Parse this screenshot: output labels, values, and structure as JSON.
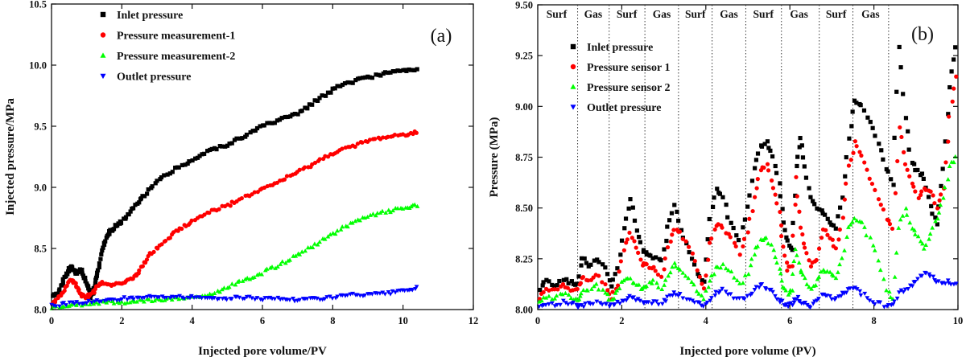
{
  "chart_data": [
    {
      "type": "scatter",
      "panel": "(a)",
      "xlabel": "Injected pore volume/PV",
      "ylabel": "Injected pressure/MPa",
      "xlim": [
        0,
        12
      ],
      "ylim": [
        8.0,
        10.5
      ],
      "xticks": [
        0,
        2,
        4,
        6,
        8,
        10,
        12
      ],
      "yticks": [
        8.0,
        8.5,
        9.0,
        9.5,
        10.0,
        10.5
      ],
      "ytick_labels": [
        "8.0",
        "8.5",
        "9.0",
        "9.5",
        "10.0",
        "10.5"
      ],
      "legend_position": "top-left",
      "series": [
        {
          "name": "Inlet pressure",
          "color": "#000000",
          "marker": "square",
          "x": [
            0.0,
            0.2,
            0.4,
            0.55,
            0.7,
            0.85,
            1.0,
            1.1,
            1.2,
            1.3,
            1.45,
            1.6,
            1.8,
            2.0,
            2.3,
            2.6,
            3.0,
            3.5,
            4.0,
            4.5,
            5.0,
            5.5,
            6.0,
            6.5,
            7.0,
            7.5,
            8.0,
            8.5,
            9.0,
            9.5,
            10.0,
            10.4
          ],
          "y": [
            8.1,
            8.15,
            8.28,
            8.35,
            8.3,
            8.32,
            8.22,
            8.1,
            8.15,
            8.3,
            8.5,
            8.62,
            8.68,
            8.72,
            8.82,
            8.92,
            9.05,
            9.15,
            9.22,
            9.3,
            9.35,
            9.42,
            9.5,
            9.55,
            9.6,
            9.7,
            9.8,
            9.86,
            9.9,
            9.93,
            9.96,
            9.97
          ]
        },
        {
          "name": "Pressure measurement-1",
          "color": "#ff0000",
          "marker": "circle",
          "x": [
            0.0,
            0.3,
            0.55,
            0.7,
            0.85,
            1.0,
            1.2,
            1.4,
            1.7,
            2.0,
            2.3,
            2.5,
            2.8,
            3.2,
            3.6,
            4.0,
            4.5,
            5.0,
            5.5,
            6.0,
            6.5,
            7.0,
            7.5,
            8.0,
            8.5,
            9.0,
            9.5,
            10.0,
            10.4
          ],
          "y": [
            8.05,
            8.12,
            8.25,
            8.2,
            8.12,
            8.1,
            8.15,
            8.22,
            8.2,
            8.22,
            8.25,
            8.32,
            8.45,
            8.55,
            8.65,
            8.72,
            8.8,
            8.85,
            8.92,
            8.98,
            9.05,
            9.12,
            9.2,
            9.28,
            9.33,
            9.38,
            9.41,
            9.43,
            9.45
          ]
        },
        {
          "name": "Pressure measurement-2",
          "color": "#00ff00",
          "marker": "triangle-up",
          "x": [
            0.0,
            0.5,
            1.0,
            1.5,
            2.0,
            2.5,
            3.0,
            3.5,
            4.0,
            4.5,
            5.0,
            5.5,
            6.0,
            6.5,
            7.0,
            7.5,
            8.0,
            8.5,
            9.0,
            9.5,
            10.0,
            10.4
          ],
          "y": [
            8.02,
            8.03,
            8.05,
            8.06,
            8.06,
            8.07,
            8.08,
            8.09,
            8.1,
            8.12,
            8.18,
            8.24,
            8.3,
            8.37,
            8.45,
            8.53,
            8.62,
            8.7,
            8.76,
            8.8,
            8.83,
            8.85
          ]
        },
        {
          "name": "Outlet pressure",
          "color": "#0000ff",
          "marker": "triangle-down",
          "x": [
            0.0,
            0.5,
            1.0,
            1.5,
            2.0,
            2.5,
            3.0,
            3.5,
            4.0,
            4.5,
            5.0,
            5.5,
            6.0,
            6.5,
            7.0,
            7.5,
            8.0,
            8.5,
            9.0,
            9.5,
            10.0,
            10.4
          ],
          "y": [
            8.03,
            8.05,
            8.06,
            8.08,
            8.09,
            8.1,
            8.1,
            8.1,
            8.1,
            8.1,
            8.09,
            8.1,
            8.09,
            8.09,
            8.08,
            8.09,
            8.1,
            8.12,
            8.12,
            8.13,
            8.15,
            8.18
          ]
        }
      ]
    },
    {
      "type": "scatter",
      "panel": "(b)",
      "xlabel": "Injected pore volume (PV)",
      "ylabel": "Pressure (MPa)",
      "xlim": [
        0,
        10
      ],
      "ylim": [
        8.0,
        9.5
      ],
      "xticks": [
        0,
        2,
        4,
        6,
        8,
        10
      ],
      "yticks": [
        8.0,
        8.25,
        8.5,
        8.75,
        9.0,
        9.25,
        9.5
      ],
      "ytick_labels": [
        "8.00",
        "8.25",
        "8.50",
        "8.75",
        "9.00",
        "9.25",
        "9.50"
      ],
      "legend_position": "top-left",
      "region_boundaries": [
        0.95,
        1.7,
        2.55,
        3.35,
        4.15,
        4.95,
        5.8,
        6.7,
        7.5,
        8.35
      ],
      "region_labels": [
        {
          "text": "Surf",
          "x": 0.45
        },
        {
          "text": "Gas",
          "x": 1.32
        },
        {
          "text": "Surf",
          "x": 2.12
        },
        {
          "text": "Gas",
          "x": 2.95
        },
        {
          "text": "Surf",
          "x": 3.75
        },
        {
          "text": "Gas",
          "x": 4.55
        },
        {
          "text": "Surf",
          "x": 5.37
        },
        {
          "text": "Gas",
          "x": 6.22
        },
        {
          "text": "Surf",
          "x": 7.1
        },
        {
          "text": "Gas",
          "x": 7.92
        }
      ],
      "series": [
        {
          "name": "Inlet pressure",
          "color": "#000000",
          "marker": "square",
          "x": [
            0.05,
            0.2,
            0.4,
            0.6,
            0.8,
            0.95,
            1.05,
            1.2,
            1.4,
            1.6,
            1.75,
            1.9,
            2.05,
            2.2,
            2.35,
            2.5,
            2.6,
            2.75,
            2.95,
            3.1,
            3.25,
            3.4,
            3.6,
            3.8,
            3.95,
            4.1,
            4.25,
            4.4,
            4.6,
            4.8,
            5.0,
            5.15,
            5.3,
            5.45,
            5.6,
            5.75,
            5.85,
            5.95,
            6.05,
            6.15,
            6.25,
            6.35,
            6.5,
            6.65,
            6.8,
            6.95,
            7.1,
            7.25,
            7.4,
            7.55,
            7.7,
            7.9,
            8.1,
            8.3,
            8.45,
            8.6,
            8.75,
            8.9,
            9.05,
            9.2,
            9.35,
            9.5,
            9.65,
            9.8,
            9.95
          ],
          "y": [
            8.1,
            8.14,
            8.12,
            8.15,
            8.13,
            8.12,
            8.26,
            8.22,
            8.25,
            8.2,
            8.12,
            8.2,
            8.4,
            8.55,
            8.38,
            8.3,
            8.28,
            8.26,
            8.24,
            8.4,
            8.52,
            8.4,
            8.28,
            8.18,
            8.14,
            8.45,
            8.6,
            8.55,
            8.42,
            8.35,
            8.5,
            8.7,
            8.8,
            8.82,
            8.75,
            8.62,
            8.42,
            8.33,
            8.3,
            8.7,
            8.85,
            8.7,
            8.55,
            8.5,
            8.48,
            8.43,
            8.4,
            8.55,
            8.85,
            9.03,
            9.0,
            8.92,
            8.82,
            8.7,
            8.62,
            9.3,
            8.95,
            8.72,
            8.68,
            8.65,
            8.5,
            8.42,
            8.7,
            9.1,
            9.3
          ]
        },
        {
          "name": "Pressure sensor 1",
          "color": "#ff0000",
          "marker": "circle",
          "x": [
            0.05,
            0.2,
            0.4,
            0.6,
            0.8,
            0.95,
            1.05,
            1.2,
            1.4,
            1.6,
            1.75,
            1.9,
            2.05,
            2.2,
            2.35,
            2.5,
            2.6,
            2.75,
            2.95,
            3.1,
            3.25,
            3.4,
            3.6,
            3.8,
            3.95,
            4.1,
            4.25,
            4.4,
            4.6,
            4.8,
            5.0,
            5.15,
            5.3,
            5.45,
            5.6,
            5.75,
            5.85,
            5.95,
            6.05,
            6.15,
            6.25,
            6.35,
            6.5,
            6.65,
            6.8,
            6.95,
            7.1,
            7.25,
            7.4,
            7.55,
            7.7,
            7.9,
            8.1,
            8.3,
            8.45,
            8.6,
            8.75,
            8.9,
            9.05,
            9.2,
            9.35,
            9.5,
            9.65,
            9.8,
            9.95
          ],
          "y": [
            8.06,
            8.1,
            8.09,
            8.12,
            8.1,
            8.1,
            8.16,
            8.14,
            8.18,
            8.12,
            8.06,
            8.12,
            8.3,
            8.38,
            8.3,
            8.22,
            8.22,
            8.2,
            8.16,
            8.3,
            8.4,
            8.38,
            8.3,
            8.2,
            8.1,
            8.32,
            8.42,
            8.4,
            8.35,
            8.28,
            8.38,
            8.55,
            8.68,
            8.72,
            8.6,
            8.48,
            8.3,
            8.2,
            8.22,
            8.65,
            8.4,
            8.3,
            8.22,
            8.25,
            8.4,
            8.35,
            8.3,
            8.45,
            8.7,
            8.82,
            8.75,
            8.65,
            8.55,
            8.45,
            8.4,
            8.9,
            8.72,
            8.62,
            8.55,
            8.6,
            8.58,
            8.5,
            8.6,
            8.95,
            9.15
          ]
        },
        {
          "name": "Pressure sensor 2",
          "color": "#00ff00",
          "marker": "triangle-up",
          "x": [
            0.05,
            0.2,
            0.4,
            0.6,
            0.8,
            0.95,
            1.05,
            1.2,
            1.4,
            1.6,
            1.75,
            1.9,
            2.05,
            2.2,
            2.35,
            2.5,
            2.6,
            2.75,
            2.95,
            3.1,
            3.25,
            3.4,
            3.6,
            3.8,
            3.95,
            4.1,
            4.25,
            4.4,
            4.6,
            4.8,
            5.0,
            5.15,
            5.3,
            5.45,
            5.6,
            5.75,
            5.85,
            5.95,
            6.05,
            6.15,
            6.25,
            6.35,
            6.5,
            6.65,
            6.8,
            6.95,
            7.1,
            7.25,
            7.4,
            7.55,
            7.7,
            7.9,
            8.1,
            8.3,
            8.45,
            8.6,
            8.75,
            8.9,
            9.05,
            9.2,
            9.35,
            9.5,
            9.65,
            9.8,
            9.95
          ],
          "y": [
            8.03,
            8.06,
            8.05,
            8.08,
            8.06,
            8.05,
            8.08,
            8.1,
            8.12,
            8.08,
            8.04,
            8.1,
            8.14,
            8.15,
            8.12,
            8.1,
            8.12,
            8.14,
            8.1,
            8.16,
            8.22,
            8.2,
            8.16,
            8.1,
            8.06,
            8.14,
            8.2,
            8.22,
            8.18,
            8.12,
            8.18,
            8.28,
            8.34,
            8.35,
            8.3,
            8.2,
            8.12,
            8.08,
            8.1,
            8.3,
            8.2,
            8.15,
            8.1,
            8.14,
            8.2,
            8.18,
            8.15,
            8.25,
            8.4,
            8.45,
            8.42,
            8.35,
            8.25,
            8.1,
            8.05,
            8.4,
            8.5,
            8.4,
            8.35,
            8.3,
            8.38,
            8.45,
            8.55,
            8.7,
            8.75
          ]
        },
        {
          "name": "Outlet pressure",
          "color": "#0000ff",
          "marker": "triangle-down",
          "x": [
            0.05,
            0.2,
            0.4,
            0.6,
            0.8,
            0.95,
            1.05,
            1.2,
            1.4,
            1.6,
            1.75,
            1.9,
            2.05,
            2.2,
            2.35,
            2.5,
            2.6,
            2.75,
            2.95,
            3.1,
            3.25,
            3.4,
            3.6,
            3.8,
            3.95,
            4.1,
            4.25,
            4.4,
            4.6,
            4.8,
            5.0,
            5.15,
            5.3,
            5.45,
            5.6,
            5.75,
            5.85,
            5.95,
            6.05,
            6.15,
            6.25,
            6.35,
            6.5,
            6.65,
            6.8,
            6.95,
            7.1,
            7.25,
            7.4,
            7.55,
            7.7,
            7.9,
            8.1,
            8.3,
            8.45,
            8.6,
            8.75,
            8.9,
            9.05,
            9.2,
            9.35,
            9.5,
            9.65,
            9.8,
            9.95
          ],
          "y": [
            8.01,
            8.03,
            8.02,
            8.04,
            8.03,
            8.02,
            8.02,
            8.03,
            8.04,
            8.03,
            8.02,
            8.03,
            8.05,
            8.06,
            8.05,
            8.03,
            8.03,
            8.04,
            8.03,
            8.06,
            8.08,
            8.07,
            8.05,
            8.03,
            8.02,
            8.05,
            8.08,
            8.1,
            8.07,
            8.05,
            8.06,
            8.1,
            8.12,
            8.11,
            8.08,
            8.05,
            8.03,
            8.02,
            8.03,
            8.06,
            8.04,
            8.03,
            8.02,
            8.04,
            8.08,
            8.06,
            8.05,
            8.08,
            8.1,
            8.1,
            8.08,
            8.05,
            8.03,
            8.02,
            8.02,
            8.08,
            8.1,
            8.12,
            8.15,
            8.18,
            8.16,
            8.14,
            8.13,
            8.14,
            8.12
          ]
        }
      ]
    }
  ]
}
